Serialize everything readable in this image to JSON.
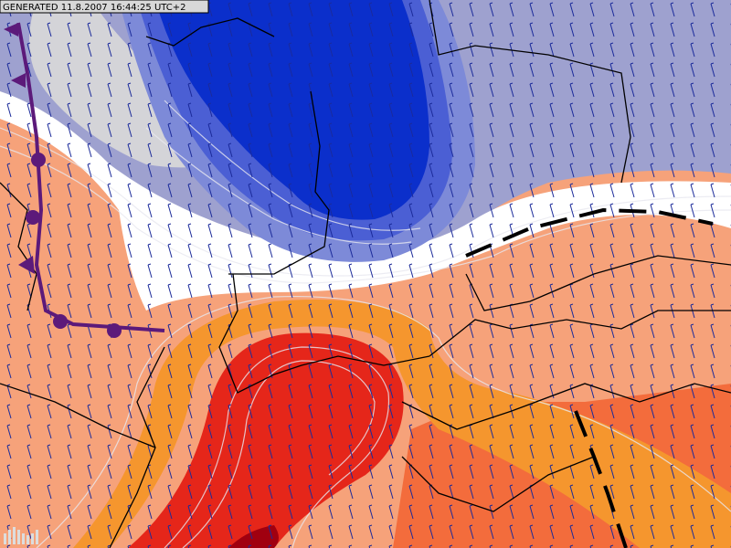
{
  "header": {
    "label": "GENERATED 11.8.2007 16:44:25 UTC+2"
  }
}
